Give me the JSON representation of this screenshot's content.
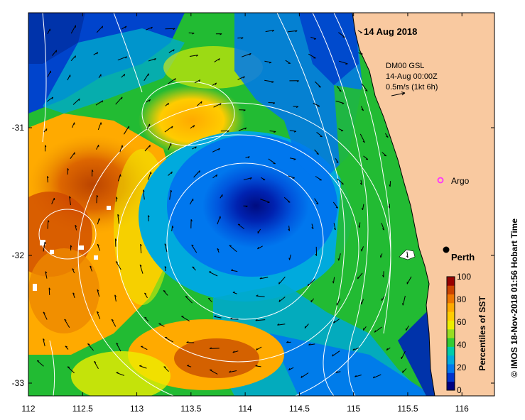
{
  "map": {
    "date_title": "14 Aug 2018",
    "vector_info": {
      "line1": "DM00 GSL",
      "line2": "14-Aug 00:00Z",
      "line3": "0.5m/s (1kt 6h)"
    },
    "places": [
      {
        "name": "Argo",
        "marker": "magenta-circle",
        "lon": 115.85,
        "lat": -31.52
      },
      {
        "name": "Perth",
        "marker": "black-dot",
        "lon": 115.86,
        "lat": -31.95
      }
    ],
    "credit": "© IMOS 18-Nov-2018 01:56 Hobart Time",
    "colors": {
      "land": "#f9c9a0",
      "contour": "#ffffff",
      "argo_marker": "#ff33ff"
    }
  },
  "axes": {
    "x_ticks": [
      "112",
      "112.5",
      "113",
      "113.5",
      "114",
      "114.5",
      "115",
      "115.5",
      "116"
    ],
    "y_ticks": [
      "-31",
      "-32",
      "-33"
    ],
    "xlim": [
      112,
      116.3
    ],
    "ylim": [
      -33.1,
      -30.1
    ]
  },
  "colorbar": {
    "label": "Percentiles of SST",
    "ticks": [
      "100",
      "80",
      "60",
      "40",
      "20",
      "0"
    ],
    "colors": [
      "#000080",
      "#0033cc",
      "#0077ee",
      "#00aadd",
      "#00ccaa",
      "#33cc33",
      "#99dd22",
      "#eeee00",
      "#ffcc00",
      "#ffaa00",
      "#ee7700",
      "#cc4400",
      "#990000"
    ]
  }
}
